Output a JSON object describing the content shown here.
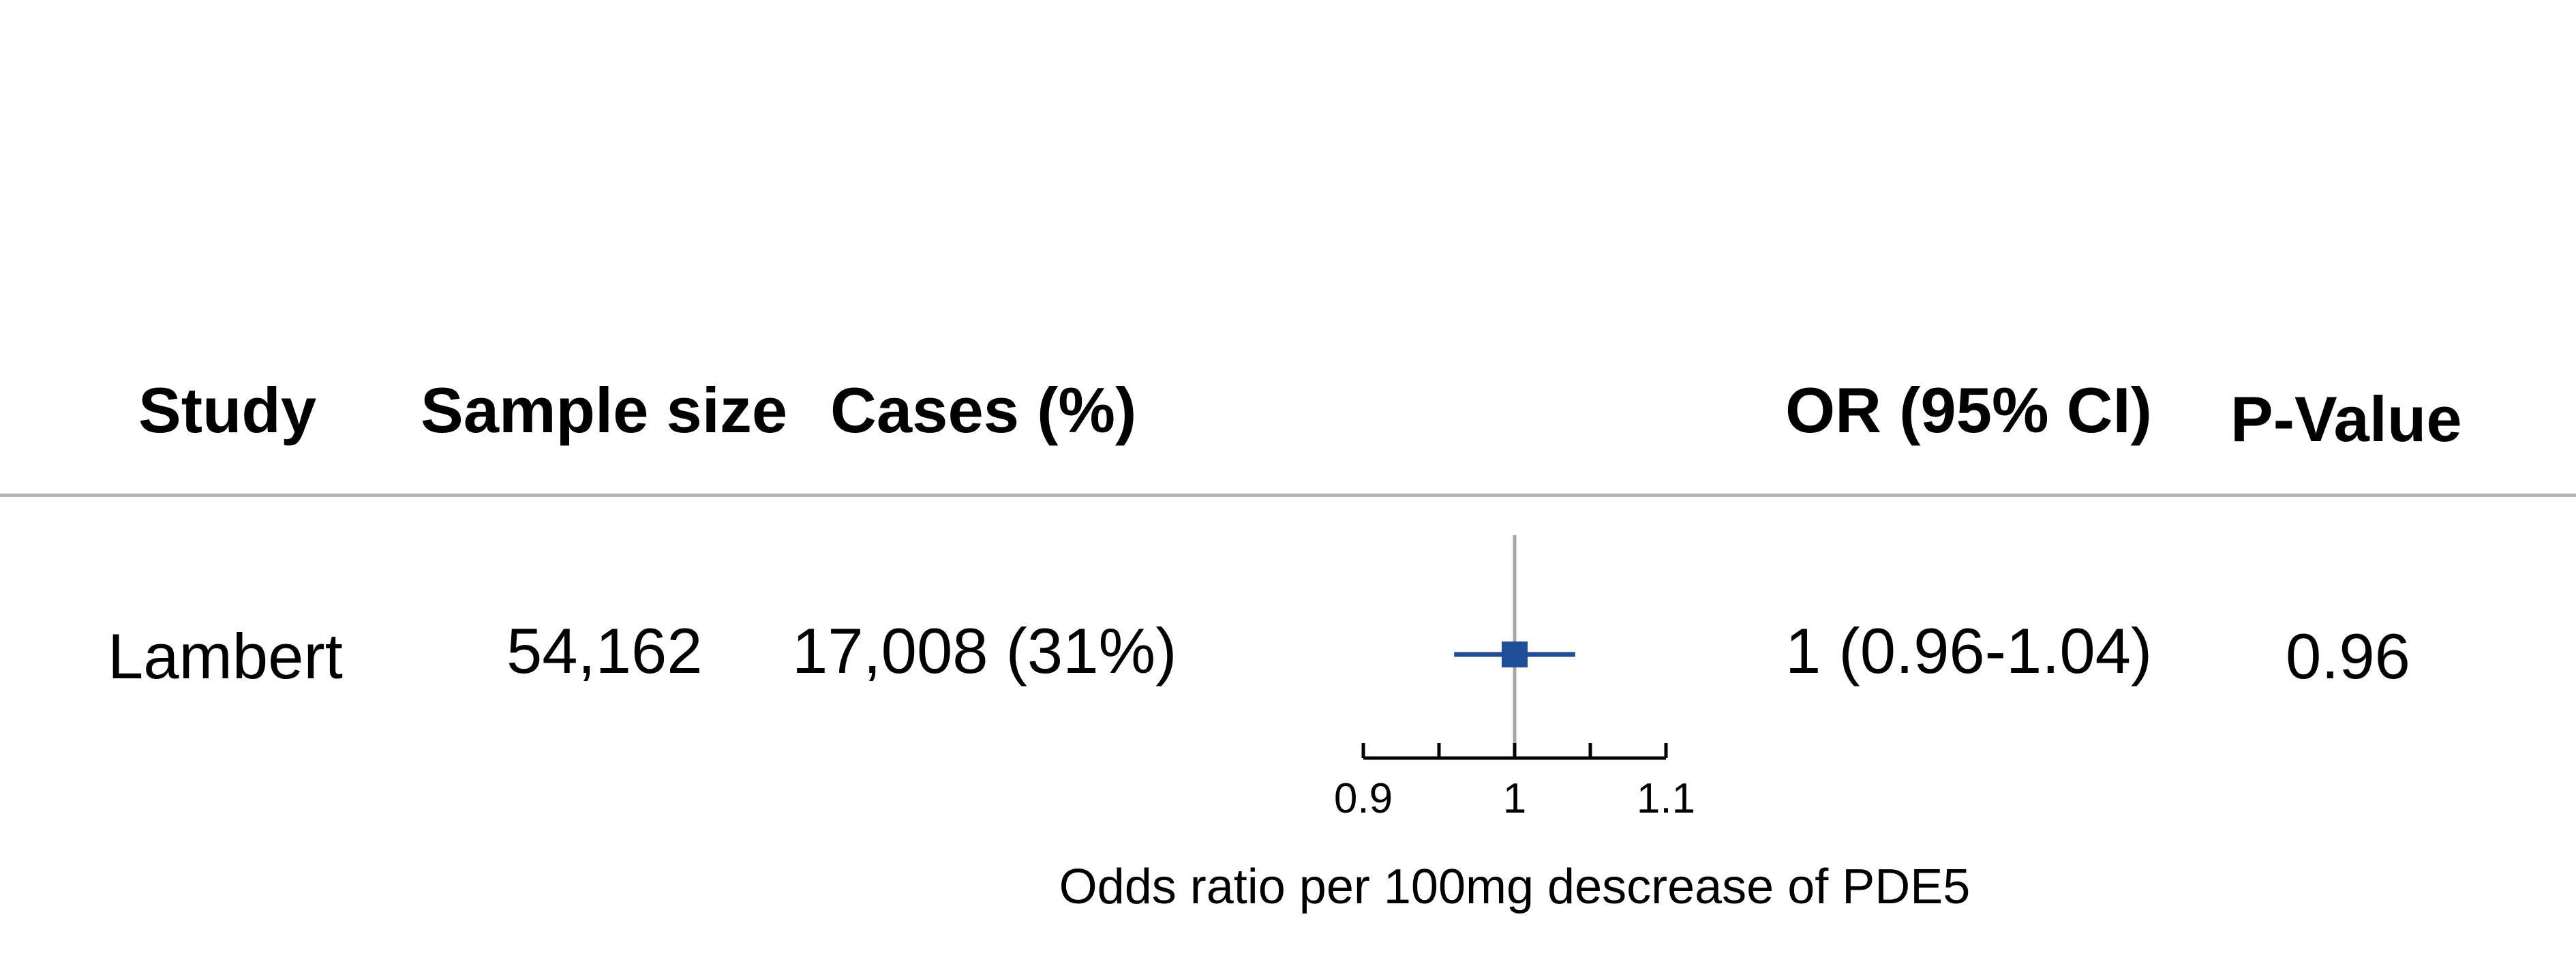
{
  "columns": {
    "study": "Study",
    "sample_size": "Sample size",
    "cases": "Cases (%)",
    "or_ci": "OR (95% CI)",
    "p_value": "P-Value"
  },
  "rows": [
    {
      "study": "Lambert",
      "sample_size": "54,162",
      "cases": "17,008 (31%)",
      "or_ci": "1 (0.96-1.04)",
      "p_value": "0.96"
    }
  ],
  "chart_data": {
    "type": "forest",
    "title": "",
    "xlabel": "Odds ratio per 100mg descrease of PDE5",
    "ylabel": "",
    "xlim": [
      0.9,
      1.1
    ],
    "xticks": [
      0.9,
      0.95,
      1,
      1.05,
      1.1
    ],
    "xtick_labels": [
      "0.9",
      "",
      "1",
      "",
      "1.1"
    ],
    "reference_line": 1,
    "grid": false,
    "series": [
      {
        "study": "Lambert",
        "estimate": 1.0,
        "ci_low": 0.96,
        "ci_high": 1.04
      }
    ],
    "colors": {
      "point": "#1f4e96",
      "reference": "#a6a6a6",
      "axis": "#000000"
    }
  }
}
